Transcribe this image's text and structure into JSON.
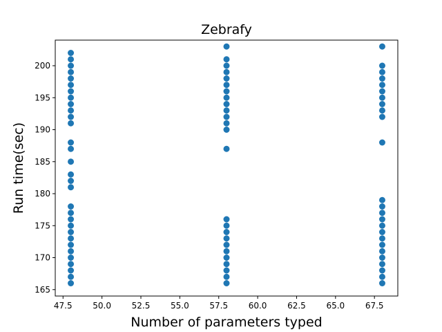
{
  "chart_data": {
    "type": "scatter",
    "title": "Zebrafy",
    "xlabel": "Number of parameters typed",
    "ylabel": "Run time(sec)",
    "xlim": [
      47.0,
      69.0
    ],
    "ylim": [
      164.0,
      204.0
    ],
    "xticks": [
      "47.5",
      "50.0",
      "52.5",
      "55.0",
      "57.5",
      "60.0",
      "62.5",
      "65.0",
      "67.5"
    ],
    "yticks": [
      "165",
      "170",
      "175",
      "180",
      "185",
      "190",
      "195",
      "200"
    ],
    "grid": false,
    "marker_color": "#1f77b4",
    "series": [
      {
        "points": [
          [
            48,
            202
          ],
          [
            48,
            201
          ],
          [
            48,
            200
          ],
          [
            48,
            199
          ],
          [
            48,
            198
          ],
          [
            48,
            197
          ],
          [
            48,
            196
          ],
          [
            48,
            195
          ],
          [
            48,
            194
          ],
          [
            48,
            193
          ],
          [
            48,
            192
          ],
          [
            48,
            191
          ],
          [
            48,
            188
          ],
          [
            48,
            187
          ],
          [
            48,
            185
          ],
          [
            48,
            183
          ],
          [
            48,
            182
          ],
          [
            48,
            181
          ],
          [
            48,
            178
          ],
          [
            48,
            177
          ],
          [
            48,
            176
          ],
          [
            48,
            175
          ],
          [
            48,
            174
          ],
          [
            48,
            173
          ],
          [
            48,
            172
          ],
          [
            48,
            171
          ],
          [
            48,
            170
          ],
          [
            48,
            169
          ],
          [
            48,
            168
          ],
          [
            48,
            167
          ],
          [
            48,
            166
          ],
          [
            58,
            203
          ],
          [
            58,
            201
          ],
          [
            58,
            200
          ],
          [
            58,
            199
          ],
          [
            58,
            198
          ],
          [
            58,
            197
          ],
          [
            58,
            196
          ],
          [
            58,
            195
          ],
          [
            58,
            194
          ],
          [
            58,
            193
          ],
          [
            58,
            192
          ],
          [
            58,
            191
          ],
          [
            58,
            190
          ],
          [
            58,
            187
          ],
          [
            58,
            176
          ],
          [
            58,
            175
          ],
          [
            58,
            174
          ],
          [
            58,
            173
          ],
          [
            58,
            172
          ],
          [
            58,
            171
          ],
          [
            58,
            170
          ],
          [
            58,
            169
          ],
          [
            58,
            168
          ],
          [
            58,
            167
          ],
          [
            58,
            166
          ],
          [
            68,
            203
          ],
          [
            68,
            200
          ],
          [
            68,
            199
          ],
          [
            68,
            198
          ],
          [
            68,
            197
          ],
          [
            68,
            196
          ],
          [
            68,
            195
          ],
          [
            68,
            194
          ],
          [
            68,
            193
          ],
          [
            68,
            192
          ],
          [
            68,
            188
          ],
          [
            68,
            179
          ],
          [
            68,
            178
          ],
          [
            68,
            177
          ],
          [
            68,
            176
          ],
          [
            68,
            175
          ],
          [
            68,
            174
          ],
          [
            68,
            173
          ],
          [
            68,
            172
          ],
          [
            68,
            171
          ],
          [
            68,
            170
          ],
          [
            68,
            169
          ],
          [
            68,
            168
          ],
          [
            68,
            167
          ],
          [
            68,
            166
          ]
        ]
      }
    ]
  }
}
